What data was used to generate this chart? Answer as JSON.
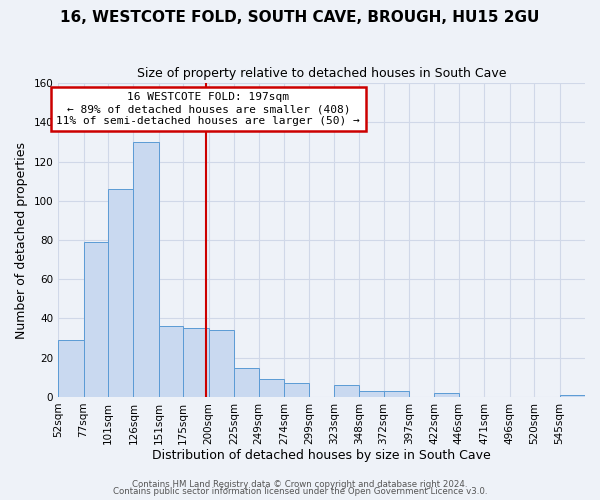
{
  "title": "16, WESTCOTE FOLD, SOUTH CAVE, BROUGH, HU15 2GU",
  "subtitle": "Size of property relative to detached houses in South Cave",
  "xlabel": "Distribution of detached houses by size in South Cave",
  "ylabel": "Number of detached properties",
  "bin_labels": [
    "52sqm",
    "77sqm",
    "101sqm",
    "126sqm",
    "151sqm",
    "175sqm",
    "200sqm",
    "225sqm",
    "249sqm",
    "274sqm",
    "299sqm",
    "323sqm",
    "348sqm",
    "372sqm",
    "397sqm",
    "422sqm",
    "446sqm",
    "471sqm",
    "496sqm",
    "520sqm",
    "545sqm"
  ],
  "bin_edges": [
    52,
    77,
    101,
    126,
    151,
    175,
    200,
    225,
    249,
    274,
    299,
    323,
    348,
    372,
    397,
    422,
    446,
    471,
    496,
    520,
    545
  ],
  "bar_heights": [
    29,
    79,
    106,
    130,
    36,
    35,
    34,
    15,
    9,
    7,
    0,
    6,
    3,
    3,
    0,
    2,
    0,
    0,
    0,
    0,
    1
  ],
  "bar_color": "#c9d9f0",
  "bar_edge_color": "#5b9bd5",
  "vline_x": 197,
  "vline_color": "#cc0000",
  "annotation_line1": "16 WESTCOTE FOLD: 197sqm",
  "annotation_line2": "← 89% of detached houses are smaller (408)",
  "annotation_line3": "11% of semi-detached houses are larger (50) →",
  "annotation_box_color": "#cc0000",
  "annotation_box_bg": "#ffffff",
  "ylim": [
    0,
    160
  ],
  "yticks": [
    0,
    20,
    40,
    60,
    80,
    100,
    120,
    140,
    160
  ],
  "grid_color": "#d0d8e8",
  "bg_color": "#eef2f8",
  "footer1": "Contains HM Land Registry data © Crown copyright and database right 2024.",
  "footer2": "Contains public sector information licensed under the Open Government Licence v3.0.",
  "title_fontsize": 11,
  "subtitle_fontsize": 9,
  "axis_label_fontsize": 9,
  "tick_fontsize": 7.5
}
